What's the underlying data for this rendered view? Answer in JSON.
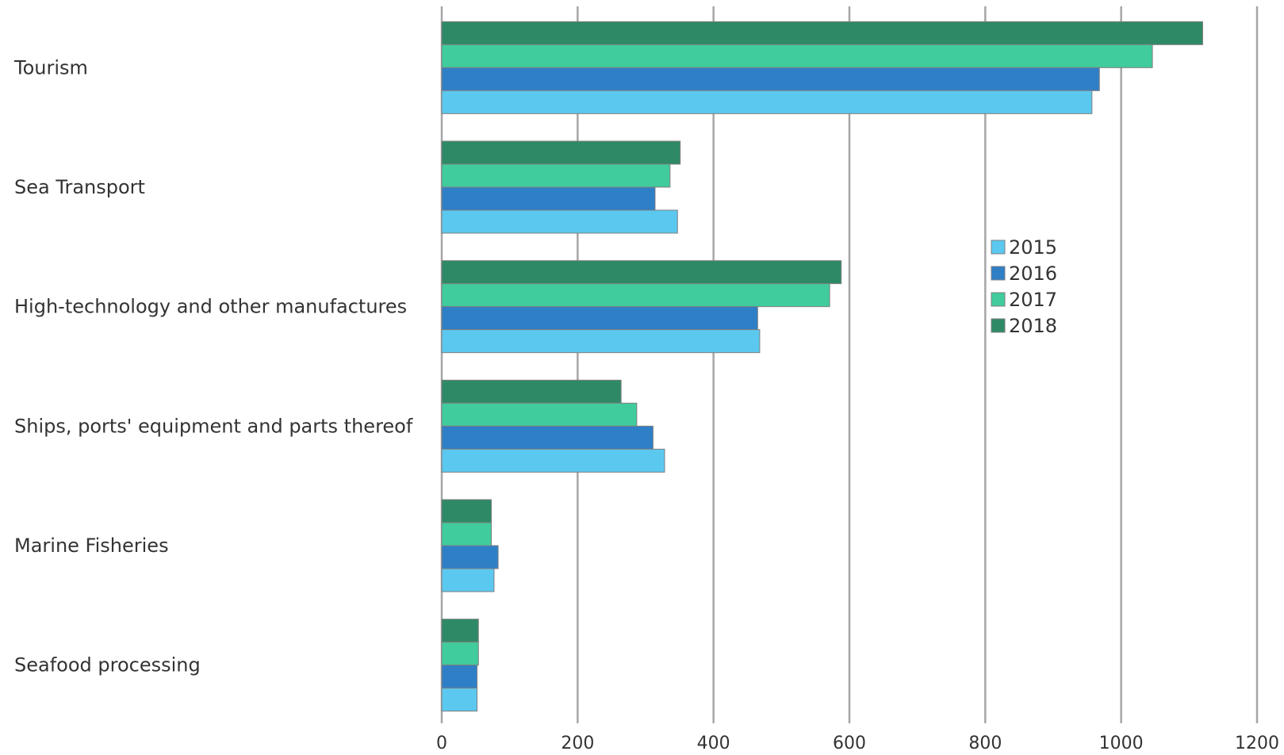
{
  "chart_data": {
    "type": "bar",
    "orientation": "horizontal",
    "categories": [
      "Tourism",
      "Sea Transport",
      "High-technology and other manufactures",
      "Ships, ports' equipment and parts thereof",
      "Marine Fisheries",
      "Seafood processing"
    ],
    "series": [
      {
        "name": "2015",
        "color": "#5bc8ef",
        "values": [
          957,
          347,
          468,
          328,
          77,
          52
        ]
      },
      {
        "name": "2016",
        "color": "#2f7fc7",
        "values": [
          968,
          314,
          465,
          311,
          83,
          52
        ]
      },
      {
        "name": "2017",
        "color": "#40cc9c",
        "values": [
          1046,
          336,
          571,
          287,
          73,
          54
        ]
      },
      {
        "name": "2018",
        "color": "#2e8a66",
        "values": [
          1120,
          351,
          588,
          264,
          73,
          54
        ]
      }
    ],
    "xlim": [
      0,
      1200
    ],
    "xticks": [
      "0",
      "200",
      "400",
      "600",
      "800",
      "1000",
      "1200"
    ],
    "grid": true,
    "legend_position": "right-middle",
    "title": "",
    "xlabel": "",
    "ylabel": ""
  }
}
